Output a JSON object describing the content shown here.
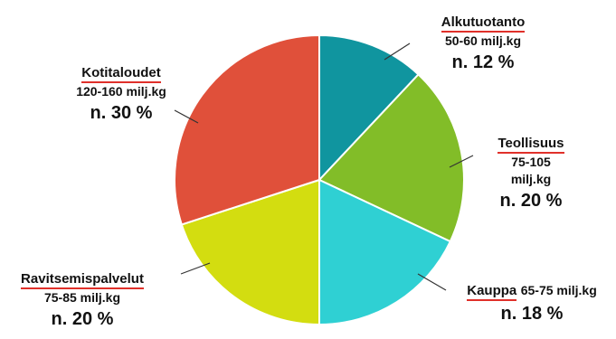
{
  "chart_data": {
    "type": "pie",
    "title": "",
    "series": [
      {
        "values": [
          12,
          20,
          18,
          20,
          30
        ]
      }
    ],
    "categories": [
      "Alkutuotanto",
      "Teollisuus",
      "Kauppa",
      "Ravitsemispalvelut",
      "Kotitaloudet"
    ],
    "amounts": [
      "50-60 milj.kg",
      "75-105 milj.kg",
      "65-75 milj.kg",
      "75-85 milj.kg",
      "120-160 milj.kg"
    ],
    "percent_labels": [
      "n. 12 %",
      "n. 20 %",
      "n. 18 %",
      "n. 20 %",
      "n. 30 %"
    ],
    "colors": [
      "#10959f",
      "#82bd28",
      "#2fd0d3",
      "#d3dd10",
      "#e0503a"
    ],
    "start_angle_deg": 0,
    "direction": "clockwise"
  },
  "labels": {
    "alkutuotanto": {
      "name": "Alkutuotanto",
      "amount": "50-60 milj.kg",
      "pct": "n. 12 %"
    },
    "teollisuus": {
      "name": "Teollisuus",
      "amount_line1": "75-105",
      "amount_line2": "milj.kg",
      "pct": "n. 20 %"
    },
    "kauppa": {
      "name": "Kauppa",
      "amount": "65-75 milj.kg",
      "pct": "n. 18 %"
    },
    "ravitsemispalvelut": {
      "name": "Ravitsemispalvelut",
      "amount": "75-85 milj.kg",
      "pct": "n. 20 %"
    },
    "kotitaloudet": {
      "name": "Kotitaloudet",
      "amount": "120-160 milj.kg",
      "pct": "n. 30 %"
    }
  }
}
